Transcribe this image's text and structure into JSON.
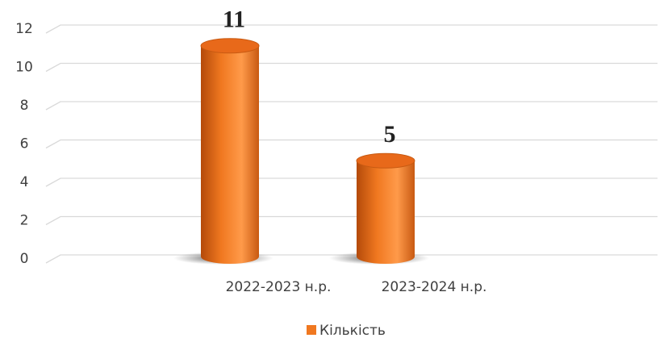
{
  "chart_data": {
    "type": "bar",
    "categories": [
      "2022-2023 н.р.",
      "2023-2024 н.р."
    ],
    "series": [
      {
        "name": "Кількість",
        "color": "#f07820",
        "values": [
          11,
          5
        ]
      }
    ],
    "ylim": [
      0,
      12
    ],
    "yticks": [
      0,
      2,
      4,
      6,
      8,
      10,
      12
    ],
    "grid": true,
    "legend": "bottom"
  }
}
